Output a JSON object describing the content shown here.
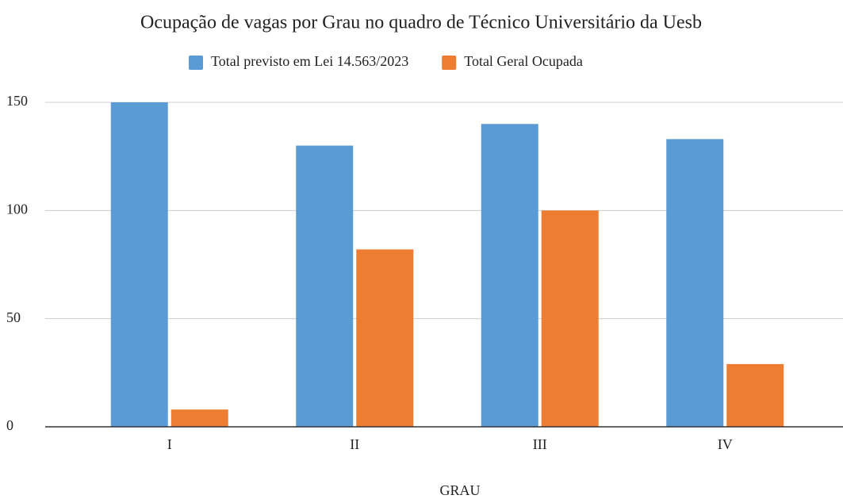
{
  "chart_data": {
    "type": "bar",
    "title": "Ocupação de vagas por Grau no quadro de Técnico Universitário da Uesb",
    "x_label": "GRAU",
    "categories": [
      "I",
      "II",
      "III",
      "IV"
    ],
    "series": [
      {
        "name": "Total previsto em Lei 14.563/2023",
        "color": "#5b9bd5",
        "values": [
          150,
          130,
          140,
          133
        ]
      },
      {
        "name": "Total Geral Ocupada",
        "color": "#ed7d31",
        "values": [
          8,
          82,
          100,
          29
        ]
      }
    ],
    "ylim": [
      0,
      150
    ],
    "yticks": [
      0,
      50,
      100,
      150
    ],
    "grid": true,
    "legend": "top"
  }
}
